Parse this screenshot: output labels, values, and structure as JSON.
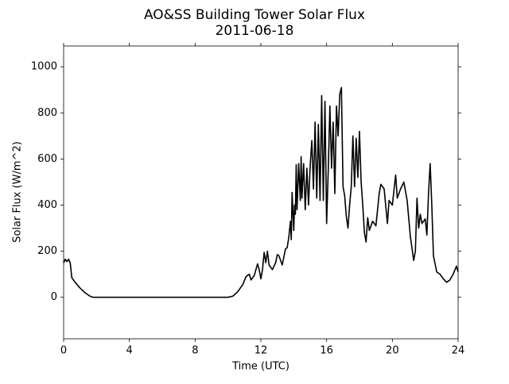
{
  "chart_data": {
    "type": "line",
    "title": "AO&SS Building Tower Solar Flux",
    "subtitle": "2011-06-18",
    "x_label": "Time (UTC)",
    "y_label": "Solar Flux (W/m^2)",
    "x": [
      0,
      0.1,
      0.2,
      0.3,
      0.4,
      0.5,
      0.7,
      1.0,
      1.3,
      1.6,
      1.8,
      2,
      10,
      10.3,
      10.6,
      10.9,
      11.1,
      11.3,
      11.4,
      11.6,
      11.8,
      11.9,
      12.0,
      12.1,
      12.2,
      12.3,
      12.4,
      12.5,
      12.7,
      12.9,
      13.0,
      13.1,
      13.3,
      13.5,
      13.6,
      13.7,
      13.8,
      13.85,
      13.9,
      14.0,
      14.05,
      14.1,
      14.15,
      14.2,
      14.3,
      14.4,
      14.45,
      14.5,
      14.6,
      14.7,
      14.8,
      14.9,
      15.0,
      15.1,
      15.2,
      15.3,
      15.4,
      15.5,
      15.6,
      15.7,
      15.8,
      15.9,
      16.0,
      16.1,
      16.2,
      16.3,
      16.4,
      16.5,
      16.6,
      16.7,
      16.8,
      16.9,
      17.0,
      17.1,
      17.2,
      17.3,
      17.4,
      17.5,
      17.6,
      17.7,
      17.8,
      17.9,
      18.0,
      18.1,
      18.2,
      18.3,
      18.4,
      18.5,
      18.6,
      18.8,
      19.0,
      19.2,
      19.3,
      19.5,
      19.7,
      19.8,
      20.0,
      20.2,
      20.3,
      20.5,
      20.7,
      20.9,
      21.1,
      21.3,
      21.4,
      21.5,
      21.6,
      21.7,
      21.8,
      22.0,
      22.1,
      22.2,
      22.3,
      22.4,
      22.5,
      22.7,
      22.9,
      23.1,
      23.3,
      23.5,
      23.7,
      23.9,
      24.0
    ],
    "series": [
      {
        "name": "Solar Flux",
        "color": "#000000",
        "values": [
          150,
          165,
          155,
          165,
          150,
          85,
          65,
          40,
          20,
          5,
          0,
          0,
          0,
          5,
          25,
          55,
          90,
          100,
          75,
          95,
          145,
          120,
          80,
          120,
          195,
          150,
          200,
          140,
          120,
          150,
          185,
          180,
          140,
          210,
          215,
          260,
          330,
          250,
          455,
          290,
          400,
          360,
          575,
          380,
          580,
          420,
          610,
          430,
          580,
          380,
          560,
          400,
          570,
          680,
          470,
          760,
          430,
          750,
          420,
          875,
          420,
          850,
          320,
          550,
          830,
          560,
          760,
          450,
          830,
          700,
          880,
          910,
          480,
          440,
          350,
          300,
          400,
          480,
          700,
          480,
          690,
          520,
          720,
          500,
          400,
          280,
          240,
          345,
          290,
          330,
          310,
          450,
          490,
          470,
          320,
          420,
          400,
          530,
          430,
          470,
          500,
          420,
          260,
          160,
          200,
          430,
          300,
          360,
          320,
          340,
          270,
          450,
          580,
          400,
          180,
          110,
          100,
          80,
          65,
          75,
          100,
          135,
          110
        ]
      }
    ],
    "xlim": [
      0,
      24
    ],
    "ylim": [
      -180,
      1090
    ],
    "xticks": [
      0,
      4,
      8,
      12,
      16,
      20,
      24
    ],
    "yticks": [
      0,
      200,
      400,
      600,
      800,
      1000
    ],
    "grid": false
  }
}
